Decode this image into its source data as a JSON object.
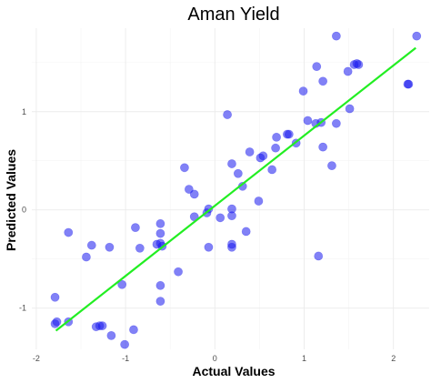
{
  "chart_data": {
    "type": "scatter",
    "title": "Aman Yield",
    "xlabel": "Actual Values",
    "ylabel": "Predicted Values",
    "xlim": [
      -2.05,
      2.4
    ],
    "ylim": [
      -1.42,
      1.85
    ],
    "x_ticks": [
      -2,
      -1,
      0,
      1,
      2
    ],
    "y_ticks": [
      -1,
      0,
      1
    ],
    "grid": true,
    "legend": "none",
    "point_color": "#1a1aee",
    "fit_line_color": "#22ee22",
    "fit_line": {
      "x": [
        -1.78,
        2.25
      ],
      "y": [
        -1.23,
        1.65
      ]
    },
    "points": [
      {
        "x": -1.79,
        "y": -0.89
      },
      {
        "x": -1.79,
        "y": -1.16
      },
      {
        "x": -1.77,
        "y": -1.14
      },
      {
        "x": -1.64,
        "y": -1.14
      },
      {
        "x": -1.64,
        "y": -0.23
      },
      {
        "x": -1.44,
        "y": -0.48
      },
      {
        "x": -1.38,
        "y": -0.36
      },
      {
        "x": -1.33,
        "y": -1.19
      },
      {
        "x": -1.29,
        "y": -1.18
      },
      {
        "x": -1.26,
        "y": -1.18
      },
      {
        "x": -1.18,
        "y": -0.38
      },
      {
        "x": -1.16,
        "y": -1.28
      },
      {
        "x": -1.04,
        "y": -0.76
      },
      {
        "x": -1.01,
        "y": -1.37
      },
      {
        "x": -0.91,
        "y": -1.22
      },
      {
        "x": -0.89,
        "y": -0.18
      },
      {
        "x": -0.84,
        "y": -0.39
      },
      {
        "x": -0.65,
        "y": -0.35
      },
      {
        "x": -0.61,
        "y": -0.14
      },
      {
        "x": -0.61,
        "y": -0.24
      },
      {
        "x": -0.61,
        "y": -0.34
      },
      {
        "x": -0.59,
        "y": -0.37
      },
      {
        "x": -0.61,
        "y": -0.77
      },
      {
        "x": -0.61,
        "y": -0.93
      },
      {
        "x": -0.41,
        "y": -0.63
      },
      {
        "x": -0.34,
        "y": 0.43
      },
      {
        "x": -0.29,
        "y": 0.21
      },
      {
        "x": -0.23,
        "y": 0.16
      },
      {
        "x": -0.23,
        "y": -0.07
      },
      {
        "x": -0.09,
        "y": -0.03
      },
      {
        "x": -0.07,
        "y": 0.01
      },
      {
        "x": -0.07,
        "y": -0.38
      },
      {
        "x": 0.06,
        "y": -0.08
      },
      {
        "x": 0.14,
        "y": 0.97
      },
      {
        "x": 0.19,
        "y": 0.01
      },
      {
        "x": 0.19,
        "y": -0.06
      },
      {
        "x": 0.19,
        "y": -0.35
      },
      {
        "x": 0.19,
        "y": -0.38
      },
      {
        "x": 0.19,
        "y": 0.47
      },
      {
        "x": 0.26,
        "y": 0.37
      },
      {
        "x": 0.31,
        "y": 0.24
      },
      {
        "x": 0.35,
        "y": -0.22
      },
      {
        "x": 0.39,
        "y": 0.59
      },
      {
        "x": 0.49,
        "y": 0.09
      },
      {
        "x": 0.51,
        "y": 0.53
      },
      {
        "x": 0.54,
        "y": 0.55
      },
      {
        "x": 0.64,
        "y": 0.41
      },
      {
        "x": 0.68,
        "y": 0.63
      },
      {
        "x": 0.69,
        "y": 0.74
      },
      {
        "x": 0.81,
        "y": 0.77
      },
      {
        "x": 0.83,
        "y": 0.77
      },
      {
        "x": 0.91,
        "y": 0.68
      },
      {
        "x": 0.99,
        "y": 1.21
      },
      {
        "x": 1.04,
        "y": 0.91
      },
      {
        "x": 1.13,
        "y": 0.88
      },
      {
        "x": 1.14,
        "y": 1.46
      },
      {
        "x": 1.16,
        "y": -0.47
      },
      {
        "x": 1.19,
        "y": 0.89
      },
      {
        "x": 1.21,
        "y": 0.64
      },
      {
        "x": 1.21,
        "y": 1.31
      },
      {
        "x": 1.31,
        "y": 0.45
      },
      {
        "x": 1.36,
        "y": 0.88
      },
      {
        "x": 1.36,
        "y": 1.77
      },
      {
        "x": 1.49,
        "y": 1.41
      },
      {
        "x": 1.51,
        "y": 1.03
      },
      {
        "x": 1.56,
        "y": 1.48
      },
      {
        "x": 1.59,
        "y": 1.49
      },
      {
        "x": 1.61,
        "y": 1.48
      },
      {
        "x": 2.16,
        "y": 1.28
      },
      {
        "x": 2.17,
        "y": 1.28
      },
      {
        "x": 2.26,
        "y": 1.77
      }
    ]
  }
}
